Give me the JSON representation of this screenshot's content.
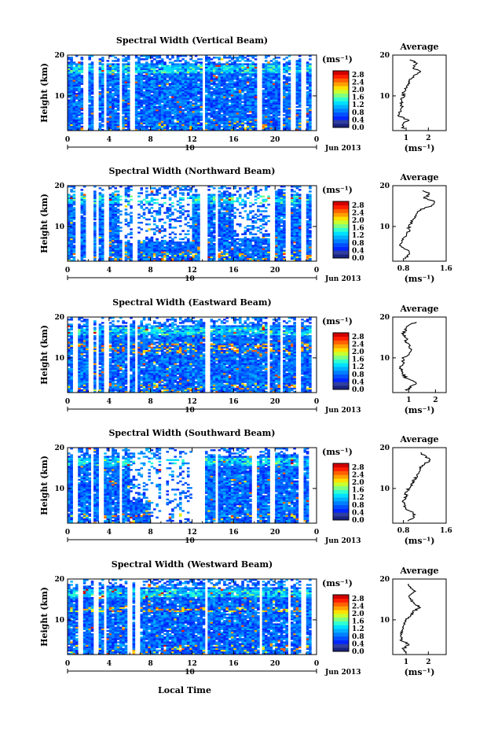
{
  "figure": {
    "x_axis_label": "Local Time",
    "date_label": "10",
    "month_label": "Jun 2013",
    "y_axis_label": "Height (km)",
    "average_title": "Average",
    "colorbar_unit": "(ms⁻¹)",
    "average_unit": "(ms⁻¹)"
  },
  "colorbar": {
    "ticks": [
      "0.0",
      "0.4",
      "0.8",
      "1.2",
      "1.6",
      "2.0",
      "2.4",
      "2.8"
    ],
    "range": [
      0.0,
      3.0
    ],
    "colors": [
      "#1a237e",
      "#303f9f",
      "#0026ff",
      "#0050ff",
      "#0080ff",
      "#00b0ff",
      "#00e0ff",
      "#30ffd0",
      "#80ff80",
      "#c8ff30",
      "#ffe000",
      "#ffa000",
      "#ff6000",
      "#ff1e00",
      "#d00000"
    ]
  },
  "chart_data": [
    {
      "type": "heatmap",
      "title": "Spectral Width (Vertical Beam)",
      "xlabel": "Local Time",
      "ylabel": "Height (km)",
      "xlim": [
        0,
        24
      ],
      "ylim": [
        1.5,
        20
      ],
      "x_ticks": [
        "0",
        "4",
        "8",
        "12",
        "16",
        "20",
        "0"
      ],
      "y_ticks": [
        "10",
        "20"
      ],
      "colorbar_label": "(ms⁻¹)",
      "profile": {
        "title": "Average",
        "xlabel": "(ms⁻¹)",
        "xlim": [
          0.4,
          2.8
        ],
        "x_ticks": [
          "1",
          "2"
        ],
        "heights": [
          2,
          3,
          4,
          5,
          6,
          7,
          8,
          9,
          10,
          11,
          12,
          13,
          14,
          15,
          16,
          17,
          18,
          19
        ],
        "values": [
          0.9,
          0.8,
          1.1,
          0.7,
          0.7,
          0.8,
          0.8,
          0.8,
          0.9,
          0.9,
          1.0,
          1.1,
          1.2,
          1.4,
          1.6,
          1.3,
          1.5,
          1.1
        ]
      }
    },
    {
      "type": "heatmap",
      "title": "Spectral Width (Northward Beam)",
      "xlabel": "Local Time",
      "ylabel": "Height (km)",
      "xlim": [
        0,
        24
      ],
      "ylim": [
        1.5,
        20
      ],
      "x_ticks": [
        "0",
        "4",
        "8",
        "12",
        "16",
        "20",
        "0"
      ],
      "y_ticks": [
        "10",
        "20"
      ],
      "colorbar_label": "(ms⁻¹)",
      "profile": {
        "title": "Average",
        "xlabel": "(ms⁻¹)",
        "xlim": [
          0.6,
          1.6
        ],
        "x_ticks": [
          "0.8",
          "1.6"
        ],
        "heights": [
          2,
          3,
          4,
          5,
          6,
          7,
          8,
          9,
          10,
          11,
          12,
          13,
          14,
          15,
          16,
          17,
          18,
          19
        ],
        "values": [
          0.8,
          0.9,
          0.9,
          0.75,
          0.75,
          0.8,
          0.85,
          0.9,
          0.9,
          0.95,
          1.0,
          1.05,
          1.1,
          1.3,
          1.4,
          1.2,
          1.3,
          1.1
        ]
      }
    },
    {
      "type": "heatmap",
      "title": "Spectral Width (Eastward Beam)",
      "xlabel": "Local Time",
      "ylabel": "Height (km)",
      "xlim": [
        0,
        24
      ],
      "ylim": [
        1.5,
        20
      ],
      "x_ticks": [
        "0",
        "4",
        "8",
        "12",
        "16",
        "20",
        "0"
      ],
      "y_ticks": [
        "10",
        "20"
      ],
      "colorbar_label": "(ms⁻¹)",
      "profile": {
        "title": "Average",
        "xlabel": "(ms⁻¹)",
        "xlim": [
          0.4,
          2.4
        ],
        "x_ticks": [
          "1",
          "2"
        ],
        "heights": [
          2,
          3,
          4,
          5,
          6,
          7,
          8,
          9,
          10,
          11,
          12,
          13,
          14,
          15,
          16,
          17,
          18,
          19
        ],
        "values": [
          0.9,
          1.1,
          1.3,
          0.9,
          0.8,
          0.7,
          0.7,
          0.8,
          0.8,
          1.0,
          1.1,
          1.0,
          0.9,
          0.9,
          0.8,
          0.9,
          1.0,
          1.4
        ]
      }
    },
    {
      "type": "heatmap",
      "title": "Spectral Width (Southward Beam)",
      "xlabel": "Local Time",
      "ylabel": "Height (km)",
      "xlim": [
        0,
        24
      ],
      "ylim": [
        1.5,
        20
      ],
      "x_ticks": [
        "0",
        "4",
        "8",
        "12",
        "16",
        "20",
        "0"
      ],
      "y_ticks": [
        "10",
        "20"
      ],
      "colorbar_label": "(ms⁻¹)",
      "profile": {
        "title": "Average",
        "xlabel": "(ms⁻¹)",
        "xlim": [
          0.6,
          1.6
        ],
        "x_ticks": [
          "0.8",
          "1.6"
        ],
        "heights": [
          2,
          3,
          4,
          5,
          6,
          7,
          8,
          9,
          10,
          11,
          12,
          13,
          14,
          15,
          16,
          17,
          18,
          19
        ],
        "values": [
          0.9,
          1.0,
          1.0,
          0.85,
          0.8,
          0.8,
          0.85,
          0.85,
          0.9,
          0.95,
          1.0,
          1.05,
          1.1,
          1.1,
          1.2,
          1.3,
          1.2,
          1.1
        ]
      }
    },
    {
      "type": "heatmap",
      "title": "Spectral Width (Westward Beam)",
      "xlabel": "Local Time",
      "ylabel": "Height (km)",
      "xlim": [
        0,
        24
      ],
      "ylim": [
        1.5,
        20
      ],
      "x_ticks": [
        "0",
        "4",
        "8",
        "12",
        "16",
        "20",
        "0"
      ],
      "y_ticks": [
        "10",
        "20"
      ],
      "colorbar_label": "(ms⁻¹)",
      "profile": {
        "title": "Average",
        "xlabel": "(ms⁻¹)",
        "xlim": [
          0.4,
          2.8
        ],
        "x_ticks": [
          "1",
          "2"
        ],
        "heights": [
          2,
          3,
          4,
          5,
          6,
          7,
          8,
          9,
          10,
          11,
          12,
          13,
          14,
          15,
          16,
          17,
          18,
          19
        ],
        "values": [
          1.0,
          0.9,
          1.1,
          0.8,
          0.8,
          0.8,
          0.9,
          0.9,
          1.0,
          1.2,
          1.3,
          1.6,
          1.4,
          1.2,
          1.1,
          1.4,
          1.2,
          1.1
        ]
      }
    }
  ]
}
